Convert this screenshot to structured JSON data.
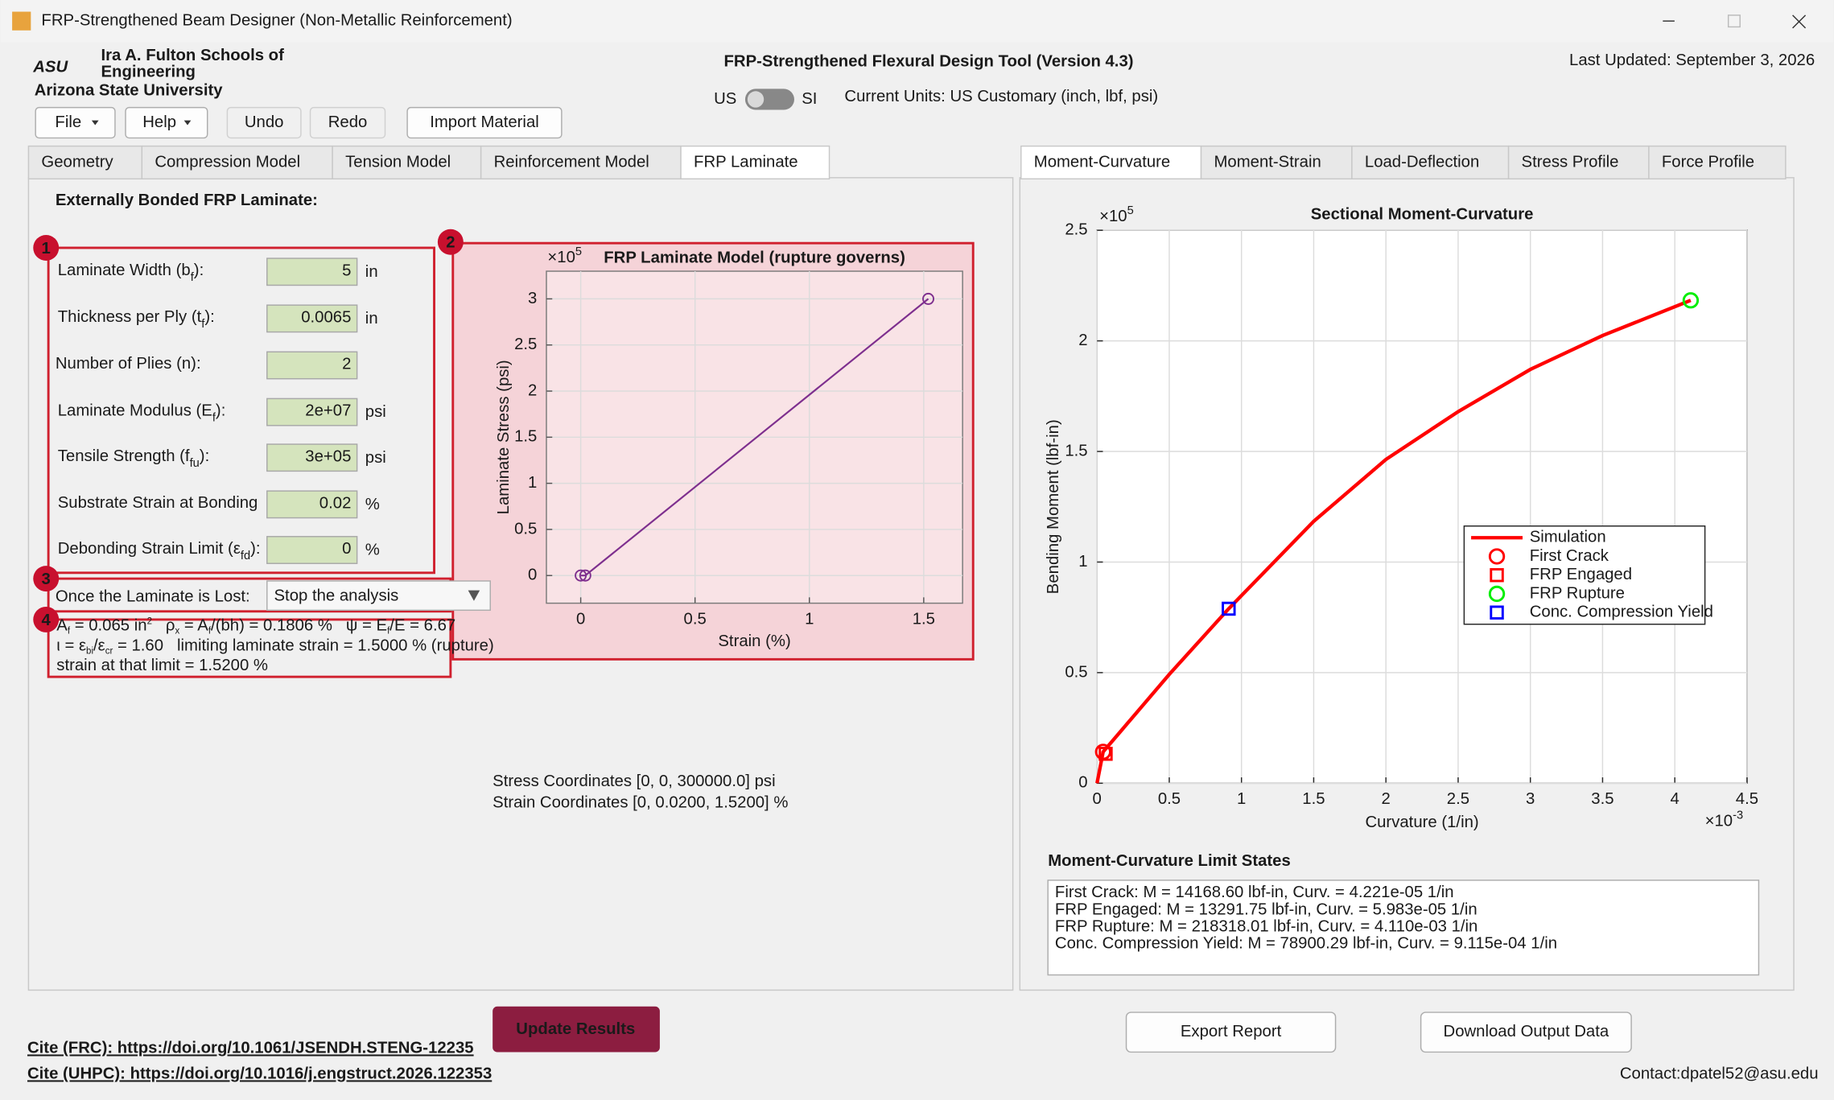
{
  "window": {
    "title": "FRP-Strengthened Beam Designer (Non-Metallic Reinforcement)"
  },
  "header": {
    "logo": {
      "mark": "ASU",
      "school": "Ira A. Fulton Schools of",
      "name": "Engineering",
      "university": "Arizona State University"
    },
    "title": "FRP-Strengthened Flexural Design Tool (Version 4.3)",
    "last_updated": "Last Updated: September 3, 2026",
    "units": {
      "left": "US",
      "right": "SI",
      "current": "Current Units: US Customary (inch, lbf, psi)"
    }
  },
  "toolbar": [
    "File",
    "Help",
    "Undo",
    "Redo",
    "Import Material"
  ],
  "left_tabs": {
    "tabs": [
      "Geometry",
      "Compression Model",
      "Tension Model",
      "Reinforcement Model",
      "FRP Laminate"
    ],
    "active": 4
  },
  "frp_panel": {
    "heading": "Externally Bonded FRP Laminate:",
    "badges": [
      "1",
      "2",
      "3",
      "4"
    ],
    "fields": [
      {
        "label": [
          "Laminate Width (b",
          {
            "sub": "f"
          },
          "):"
        ],
        "value": "5",
        "unit": "in"
      },
      {
        "label": [
          "Thickness per Ply (t",
          {
            "sub": "f"
          },
          "):"
        ],
        "value": "0.0065",
        "unit": "in"
      },
      {
        "label": [
          "Number of Plies (n):"
        ],
        "value": "2"
      },
      {
        "label": [
          "Laminate Modulus (E",
          {
            "sub": "f"
          },
          "):"
        ],
        "value": "2e+07",
        "unit": "psi"
      },
      {
        "label": [
          "Tensile Strength (f",
          {
            "sub": "fu"
          },
          "):"
        ],
        "value": "3e+05",
        "unit": "psi"
      },
      {
        "label": [
          "Substrate Strain at Bonding"
        ],
        "value": "0.02",
        "unit": "%"
      },
      {
        "label": [
          "Debonding Strain Limit (ε",
          {
            "sub": "fd"
          },
          "):"
        ],
        "value": "0",
        "unit": "%"
      }
    ],
    "lost": {
      "label": "Once the Laminate is Lost:",
      "value": "Stop the analysis"
    },
    "info": [
      [
        "A",
        {
          "sub": "f"
        },
        " = 0.065 in",
        {
          "sup": "2"
        },
        "   ρ",
        {
          "sub": "x"
        },
        " = A",
        {
          "sub": "f"
        },
        "/(bh) = 0.1806 %   ψ = E",
        {
          "sub": "f"
        },
        "/E = 6.67"
      ],
      [
        "ι = ε",
        {
          "sub": "bi"
        },
        "/ε",
        {
          "sub": "cr"
        },
        " = 1.60   limiting laminate strain = 1.5000 % (rupture)"
      ],
      [
        "strain at that limit = 1.5200 %"
      ]
    ],
    "coordinates": [
      "Stress Coordinates [0, 0, 300000.0] psi",
      "Strain Coordinates [0, 0.0200, 1.5200] %"
    ]
  },
  "laminate_chart": {
    "type": "line",
    "title": "FRP Laminate Model (rupture governs)",
    "multiplier": [
      "×10",
      {
        "sup": "5"
      }
    ],
    "xlabel": "Strain (%)",
    "ylabel": "Laminate Stress (psi)",
    "x": [
      0,
      0.02,
      1.52
    ],
    "values": [
      0,
      0,
      300000
    ],
    "color": "#7e2f8e",
    "markers": "circle",
    "xlim": [
      -0.15,
      1.67
    ],
    "ylim": [
      -30000,
      330000
    ],
    "xticks": [
      0,
      0.5,
      1,
      1.5
    ],
    "yticks": [
      0,
      {
        "value": 50000,
        "label": "0.5"
      },
      {
        "value": 100000,
        "label": "1"
      },
      {
        "value": 150000,
        "label": "1.5"
      },
      {
        "value": 200000,
        "label": "2"
      },
      {
        "value": 250000,
        "label": "2.5"
      },
      {
        "value": 300000,
        "label": "3"
      }
    ],
    "grid": true
  },
  "right_tabs": {
    "tabs": [
      "Moment-Curvature",
      "Moment-Strain",
      "Load-Deflection",
      "Stress Profile",
      "Force Profile"
    ],
    "active": 0
  },
  "moment_curvature_chart": {
    "type": "line",
    "title": "Sectional Moment-Curvature",
    "multiplier": [
      "×10",
      {
        "sup": "5"
      }
    ],
    "x_multiplier": [
      "×10",
      {
        "sup": "-3"
      }
    ],
    "xlabel": "Curvature (1/in)",
    "ylabel": "Bending Moment (lbf-in)",
    "series": [
      {
        "name": "Simulation",
        "color": "#ff0000",
        "x": [
          0,
          4.221e-05,
          0.0005,
          0.0009115,
          0.0015,
          0.002,
          0.0025,
          0.003,
          0.0035,
          0.00411
        ],
        "values": [
          0,
          14168.6,
          49200,
          78900.29,
          118400,
          146400,
          168000,
          187100,
          202400,
          218318.01
        ]
      }
    ],
    "markers": [
      {
        "name": "First Crack",
        "shape": "circle",
        "color": "#ff0000",
        "x": 4.221e-05,
        "value": 14168.6
      },
      {
        "name": "FRP Engaged",
        "shape": "square",
        "color": "#ff0000",
        "x": 5.983e-05,
        "value": 13291.75
      },
      {
        "name": "FRP Rupture",
        "shape": "circle",
        "color": "#00ee00",
        "x": 0.00411,
        "value": 218318.01
      },
      {
        "name": "Conc. Compression Yield",
        "shape": "square",
        "color": "#0000ff",
        "x": 0.0009115,
        "value": 78900.29
      }
    ],
    "xlim": [
      0,
      0.0045
    ],
    "ylim": [
      0,
      250000
    ],
    "xticks": [
      0,
      {
        "value": 0.0005,
        "label": "0.5"
      },
      {
        "value": 0.001,
        "label": "1"
      },
      {
        "value": 0.0015,
        "label": "1.5"
      },
      {
        "value": 0.002,
        "label": "2"
      },
      {
        "value": 0.0025,
        "label": "2.5"
      },
      {
        "value": 0.003,
        "label": "3"
      },
      {
        "value": 0.0035,
        "label": "3.5"
      },
      {
        "value": 0.004,
        "label": "4"
      },
      {
        "value": 0.0045,
        "label": "4.5"
      }
    ],
    "yticks": [
      0,
      {
        "value": 50000,
        "label": "0.5"
      },
      {
        "value": 100000,
        "label": "1"
      },
      {
        "value": 150000,
        "label": "1.5"
      },
      {
        "value": 200000,
        "label": "2"
      },
      {
        "value": 250000,
        "label": "2.5"
      }
    ],
    "grid": true,
    "legend": "east"
  },
  "limit_states": {
    "title": "Moment-Curvature Limit States",
    "lines": [
      "First Crack: M = 14168.60 lbf-in, Curv. = 4.221e-05 1/in",
      "FRP Engaged: M = 13291.75 lbf-in, Curv. = 5.983e-05 1/in",
      "FRP Rupture: M = 218318.01 lbf-in, Curv. = 4.110e-03 1/in",
      "Conc. Compression Yield: M = 78900.29 lbf-in, Curv. = 9.115e-04 1/in"
    ]
  },
  "actions": {
    "update": "Update Results",
    "export": "Export Report",
    "download": "Download Output Data"
  },
  "footer": {
    "links": [
      "Cite (FRC): https://doi.org/10.1061/JSENDH.STENG-12235",
      "Cite (UHPC): https://doi.org/10.1016/j.engstruct.2026.122353"
    ],
    "contact": "Contact:dpatel52@asu.edu"
  }
}
